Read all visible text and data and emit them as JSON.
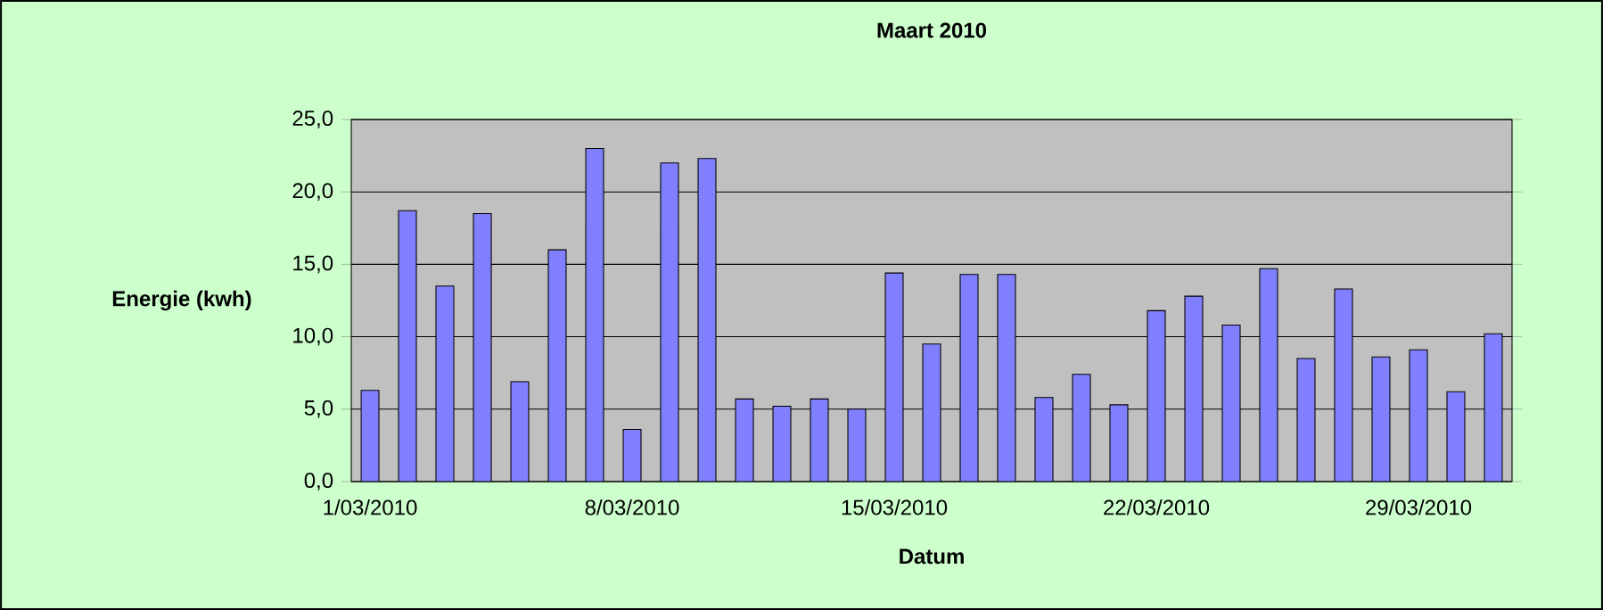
{
  "chart_data": {
    "type": "bar",
    "title": "Maart 2010",
    "xlabel": "Datum",
    "ylabel": "Energie (kwh)",
    "categories": [
      "1/03/2010",
      null,
      null,
      null,
      null,
      null,
      null,
      "8/03/2010",
      null,
      null,
      null,
      null,
      null,
      null,
      "15/03/2010",
      null,
      null,
      null,
      null,
      null,
      null,
      "22/03/2010",
      null,
      null,
      null,
      null,
      null,
      null,
      "29/03/2010",
      null,
      null
    ],
    "values": [
      6.3,
      18.7,
      13.5,
      18.5,
      6.9,
      16.0,
      23.0,
      3.6,
      22.0,
      22.3,
      5.7,
      5.2,
      5.7,
      5.0,
      14.4,
      9.5,
      14.3,
      14.3,
      5.8,
      7.4,
      5.3,
      11.8,
      12.8,
      10.8,
      14.7,
      8.5,
      13.3,
      8.6,
      9.1,
      6.2,
      10.2
    ],
    "color": "#8080ff",
    "ylim": [
      0,
      25
    ],
    "yticks": [
      {
        "value": 0,
        "label": "0,0"
      },
      {
        "value": 5,
        "label": "5,0"
      },
      {
        "value": 10,
        "label": "10,0"
      },
      {
        "value": 15,
        "label": "15,0"
      },
      {
        "value": 20,
        "label": "20,0"
      },
      {
        "value": 25,
        "label": "25,0"
      }
    ],
    "grid": "y"
  }
}
